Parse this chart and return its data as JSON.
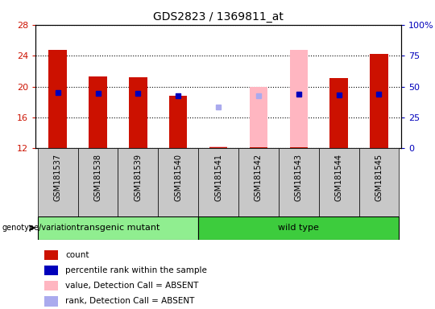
{
  "title": "GDS2823 / 1369811_at",
  "samples": [
    "GSM181537",
    "GSM181538",
    "GSM181539",
    "GSM181540",
    "GSM181541",
    "GSM181542",
    "GSM181543",
    "GSM181544",
    "GSM181545"
  ],
  "red_bar_top": [
    24.7,
    21.3,
    21.2,
    18.8,
    12.1,
    12.1,
    12.1,
    21.1,
    24.2
  ],
  "blue_marker": [
    19.2,
    19.1,
    19.1,
    18.8,
    null,
    null,
    19.0,
    18.9,
    19.0
  ],
  "pink_bar_top": [
    null,
    null,
    null,
    null,
    12.25,
    20.0,
    24.7,
    null,
    null
  ],
  "light_blue_marker": [
    null,
    null,
    null,
    null,
    17.3,
    18.8,
    null,
    null,
    null
  ],
  "ymin": 12,
  "ymax": 28,
  "yticks": [
    12,
    16,
    20,
    24,
    28
  ],
  "right_yticks_pct": [
    0,
    25,
    50,
    75,
    100
  ],
  "right_ylabels": [
    "0",
    "25",
    "50",
    "75",
    "100%"
  ],
  "group_labels": [
    "transgenic mutant",
    "wild type"
  ],
  "group_ranges": [
    [
      0,
      3
    ],
    [
      4,
      8
    ]
  ],
  "group_colors": [
    "#90EE90",
    "#3DCC3D"
  ],
  "bar_width": 0.45,
  "red_color": "#CC1100",
  "blue_color": "#0000BB",
  "pink_color": "#FFB6C1",
  "light_blue_color": "#AAAAEE",
  "bg_color": "#FFFFFF",
  "plot_bg": "#FFFFFF",
  "grid_color": "#000000",
  "tick_color_left": "#CC1100",
  "tick_color_right": "#0000BB",
  "label_box_color": "#C8C8C8",
  "legend_items": [
    "count",
    "percentile rank within the sample",
    "value, Detection Call = ABSENT",
    "rank, Detection Call = ABSENT"
  ],
  "legend_colors": [
    "#CC1100",
    "#0000BB",
    "#FFB6C1",
    "#AAAAEE"
  ]
}
